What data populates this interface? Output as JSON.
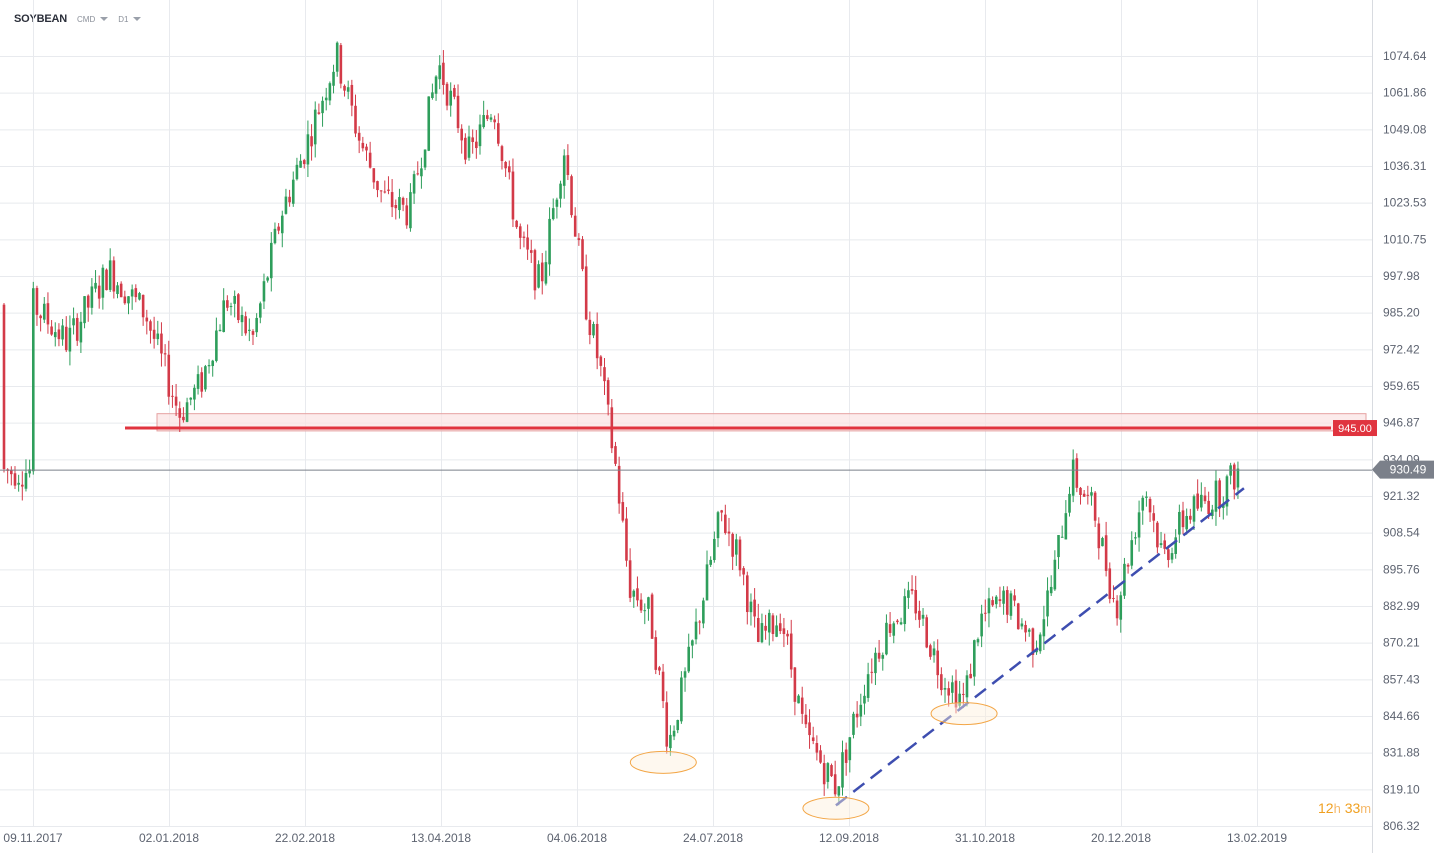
{
  "header": {
    "symbol": "SOYBEAN",
    "market": "CMD",
    "interval": "D1"
  },
  "countdown": {
    "hours": "12",
    "h_unit": "h",
    "minutes": "33",
    "m_unit": "m"
  },
  "colors": {
    "up": "#2e9e5b",
    "down": "#d33a48",
    "grid": "#e8eaee",
    "resistance": "#e0343f",
    "zone_fill": "#fbe3e3",
    "trendline": "#3e4eb0",
    "price_line": "#7b808a",
    "ellipse": "#f3a646"
  },
  "chart_data": {
    "type": "candlestick",
    "y_axis_ticks": [
      "1074.64",
      "1061.86",
      "1049.08",
      "1036.31",
      "1023.53",
      "1010.75",
      "997.98",
      "985.20",
      "972.42",
      "959.65",
      "946.87",
      "934.09",
      "921.32",
      "908.54",
      "895.76",
      "882.99",
      "870.21",
      "857.43",
      "844.66",
      "831.88",
      "819.10",
      "806.32"
    ],
    "x_axis_ticks": [
      "09.11.2017",
      "02.01.2018",
      "22.02.2018",
      "13.04.2018",
      "04.06.2018",
      "24.07.2018",
      "12.09.2018",
      "31.10.2018",
      "20.12.2018",
      "13.02.2019"
    ],
    "ylim": [
      806.32,
      1074.64
    ],
    "x_range": [
      "2017-11-09",
      "2019-02-13"
    ],
    "resistance_level": {
      "value": 945.0,
      "label": "945.00",
      "zone": [
        944.0,
        950.0
      ]
    },
    "current_price": {
      "value": 930.49,
      "label": "930.49"
    },
    "support_trendline": {
      "from": {
        "date": "2018-09-12",
        "value": 813.5
      },
      "to": {
        "date": "2019-02-15",
        "value": 924.0
      }
    },
    "highlighted_lows": [
      {
        "date": "2018-07-08",
        "value": 828.5
      },
      {
        "date": "2018-09-12",
        "value": 812.5
      },
      {
        "date": "2018-10-31",
        "value": 845.5
      }
    ],
    "candles_ohlc_samples": [
      {
        "date": "2017-11-09",
        "open": 989,
        "high": 996,
        "low": 984,
        "close": 987
      },
      {
        "date": "2017-12-14",
        "open": 998,
        "high": 1008,
        "low": 994,
        "close": 1003
      },
      {
        "date": "2018-01-02",
        "open": 952,
        "high": 958,
        "low": 945,
        "close": 948
      },
      {
        "date": "2018-02-22",
        "open": 1055,
        "high": 1068,
        "low": 1049,
        "close": 1062
      },
      {
        "date": "2018-03-02",
        "open": 1078,
        "high": 1084,
        "low": 1068,
        "close": 1072
      },
      {
        "date": "2018-04-13",
        "open": 1062,
        "high": 1074,
        "low": 1058,
        "close": 1071
      },
      {
        "date": "2018-05-29",
        "open": 1043,
        "high": 1049,
        "low": 1038,
        "close": 1046
      },
      {
        "date": "2018-06-04",
        "open": 1000,
        "high": 1002,
        "low": 988,
        "close": 990
      },
      {
        "date": "2018-06-19",
        "open": 908,
        "high": 911,
        "low": 840,
        "close": 895
      },
      {
        "date": "2018-07-09",
        "open": 838,
        "high": 845,
        "low": 828,
        "close": 834
      },
      {
        "date": "2018-07-30",
        "open": 912,
        "high": 918,
        "low": 906,
        "close": 915
      },
      {
        "date": "2018-09-12",
        "open": 820,
        "high": 829,
        "low": 812,
        "close": 825
      },
      {
        "date": "2018-10-31",
        "open": 848,
        "high": 856,
        "low": 845,
        "close": 853
      },
      {
        "date": "2018-12-10",
        "open": 924,
        "high": 934,
        "low": 918,
        "close": 928
      },
      {
        "date": "2019-01-02",
        "open": 884,
        "high": 890,
        "low": 880,
        "close": 887
      },
      {
        "date": "2019-02-13",
        "open": 928,
        "high": 934,
        "low": 926,
        "close": 930
      }
    ]
  }
}
